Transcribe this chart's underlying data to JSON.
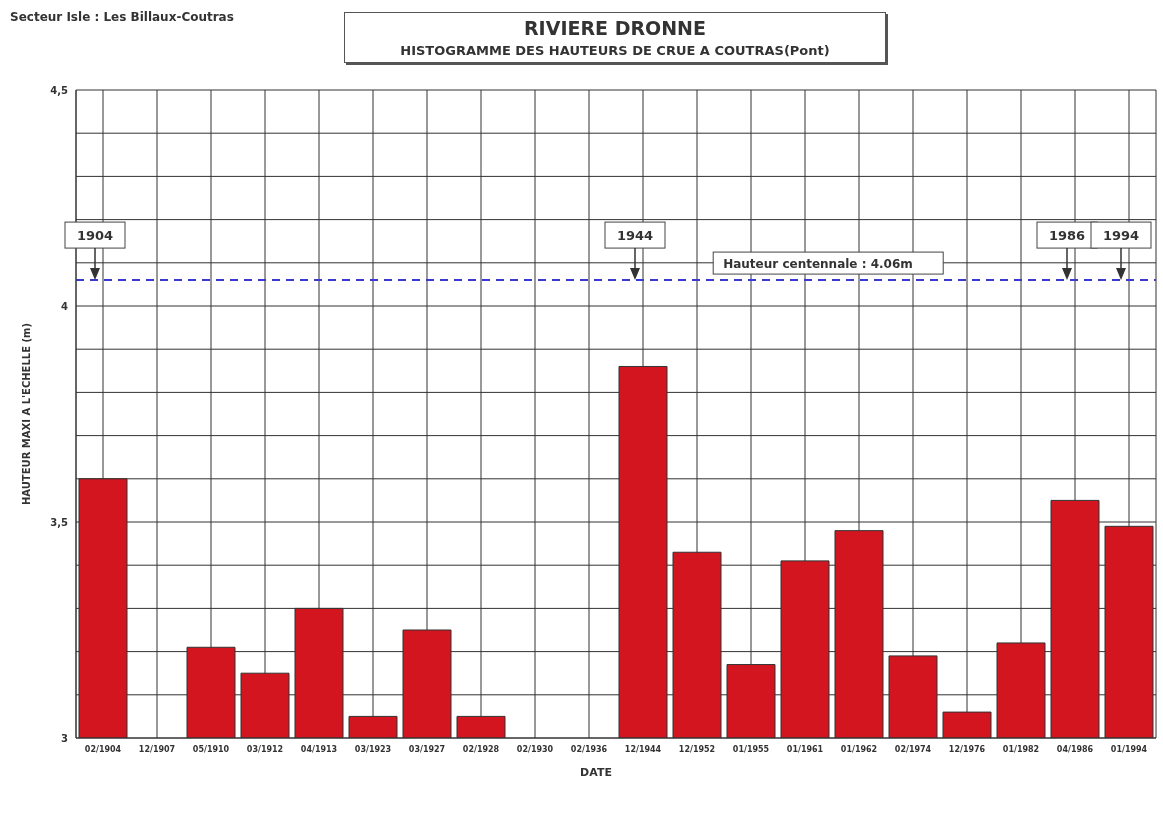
{
  "chart_data": {
    "type": "bar",
    "title": "RIVIERE DRONNE",
    "subtitle": "HISTOGRAMME DES HAUTEURS DE CRUE A COUTRAS(Pont)",
    "xlabel": "DATE",
    "ylabel": "HAUTEUR MAXI A L'ECHELLE (m)",
    "categories": [
      "02/1904",
      "12/1907",
      "05/1910",
      "03/1912",
      "04/1913",
      "03/1923",
      "03/1927",
      "02/1928",
      "02/1930",
      "02/1936",
      "12/1944",
      "12/1952",
      "01/1955",
      "01/1961",
      "01/1962",
      "02/1974",
      "12/1976",
      "01/1982",
      "04/1986",
      "01/1994"
    ],
    "values": [
      3.6,
      null,
      3.21,
      3.15,
      3.3,
      3.05,
      3.25,
      3.05,
      null,
      null,
      3.86,
      3.43,
      3.17,
      3.41,
      3.48,
      3.19,
      3.06,
      3.22,
      3.55,
      3.49
    ],
    "color": "#d2151f",
    "ylim": [
      3,
      4.5
    ],
    "yticks": [
      {
        "value": 3,
        "label": "3"
      },
      {
        "value": 3.1,
        "label": null
      },
      {
        "value": 3.2,
        "label": null
      },
      {
        "value": 3.3,
        "label": null
      },
      {
        "value": 3.4,
        "label": null
      },
      {
        "value": 3.5,
        "label": "3,5"
      },
      {
        "value": 3.6,
        "label": null
      },
      {
        "value": 3.7,
        "label": null
      },
      {
        "value": 3.8,
        "label": null
      },
      {
        "value": 3.9,
        "label": null
      },
      {
        "value": 4,
        "label": "4"
      },
      {
        "value": 4.1,
        "label": null
      },
      {
        "value": 4.2,
        "label": null
      },
      {
        "value": 4.3,
        "label": null
      },
      {
        "value": 4.4,
        "label": null
      },
      {
        "value": 4.5,
        "label": "4,5"
      }
    ],
    "grid": true,
    "ref_lines": [
      {
        "axis": "y",
        "value": 4.06,
        "label": "Hauteur centennale : 4.06m",
        "color": "#3a3ad0",
        "line_style": "dashed"
      }
    ],
    "annotations": [
      "Secteur Isle : Les Billaux-Coutras",
      {
        "text": "1904",
        "x": "02/1904",
        "y": 4.06
      },
      {
        "text": "1944",
        "x": "12/1944",
        "y": 4.06
      },
      {
        "text": "1986",
        "x": "04/1986",
        "y": 4.06
      },
      {
        "text": "1994",
        "x": "01/1994",
        "y": 4.06
      }
    ]
  }
}
